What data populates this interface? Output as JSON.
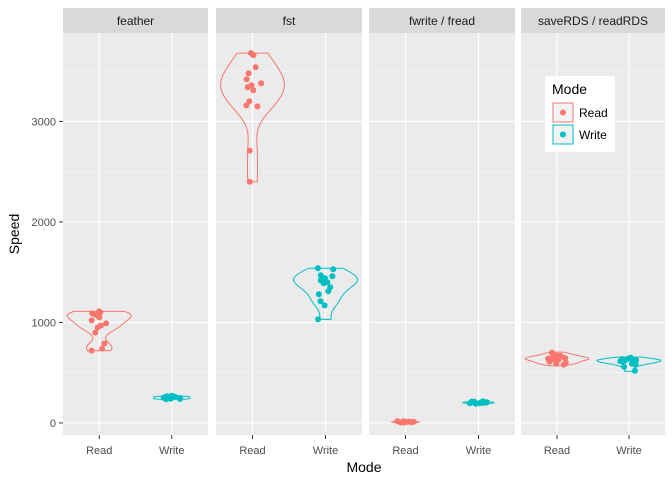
{
  "chart_data": {
    "type": "violin-jitter",
    "xlabel": "Mode",
    "ylabel": "Speed",
    "ylim": [
      -120,
      3880
    ],
    "y_ticks": [
      0,
      1000,
      2000,
      3000
    ],
    "categories": [
      "Read",
      "Write"
    ],
    "legend": {
      "title": "Mode",
      "position": "top-right",
      "entries": [
        {
          "label": "Read",
          "color": "#F8766D"
        },
        {
          "label": "Write",
          "color": "#00BFC4"
        }
      ]
    },
    "facets": [
      {
        "name": "feather",
        "groups": [
          {
            "mode": "Read",
            "points": [
              1110,
              1100,
              1090,
              1080,
              1060,
              1050,
              1020,
              990,
              970,
              950,
              900,
              790,
              740,
              720
            ],
            "violin_range": [
              720,
              1110
            ]
          },
          {
            "mode": "Write",
            "points": [
              270,
              265,
              262,
              260,
              258,
              255,
              253,
              250,
              248,
              245,
              243,
              240,
              238,
              236
            ],
            "violin_range": [
              236,
              275
            ]
          }
        ]
      },
      {
        "name": "fst",
        "groups": [
          {
            "mode": "Read",
            "points": [
              3680,
              3660,
              3540,
              3480,
              3420,
              3380,
              3360,
              3340,
              3310,
              3200,
              3160,
              3150,
              2710,
              2400
            ],
            "violin_range": [
              2400,
              3680
            ]
          },
          {
            "mode": "Write",
            "points": [
              1540,
              1530,
              1470,
              1460,
              1440,
              1420,
              1400,
              1390,
              1350,
              1310,
              1280,
              1210,
              1170,
              1030
            ],
            "violin_range": [
              1030,
              1540
            ]
          }
        ]
      },
      {
        "name": "fwrite / fread",
        "groups": [
          {
            "mode": "Read",
            "points": [
              18,
              16,
              14,
              12,
              11,
              10,
              9,
              8,
              8,
              7,
              6,
              5,
              4,
              3
            ],
            "violin_range": [
              3,
              18
            ]
          },
          {
            "mode": "Write",
            "points": [
              215,
              212,
              210,
              208,
              206,
              205,
              203,
              201,
              200,
              199,
              197,
              195,
              193,
              190
            ],
            "violin_range": [
              190,
              215
            ]
          }
        ]
      },
      {
        "name": "saveRDS / readRDS",
        "groups": [
          {
            "mode": "Read",
            "points": [
              700,
              680,
              670,
              660,
              650,
              645,
              640,
              635,
              630,
              620,
              610,
              600,
              590,
              580
            ],
            "violin_range": [
              570,
              705
            ]
          },
          {
            "mode": "Write",
            "points": [
              650,
              640,
              635,
              630,
              625,
              620,
              615,
              610,
              605,
              600,
              590,
              580,
              560,
              520
            ],
            "violin_range": [
              515,
              655
            ]
          }
        ]
      }
    ]
  }
}
